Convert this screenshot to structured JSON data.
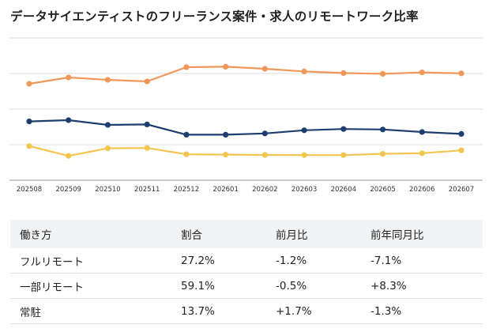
{
  "title": "データサイエンティストのフリーランス案件・求人のリモートワーク比率",
  "chart_data": {
    "type": "line",
    "x": [
      "202508",
      "202509",
      "202510",
      "202511",
      "202512",
      "202601",
      "202602",
      "202603",
      "202604",
      "202605",
      "202606",
      "202607"
    ],
    "series": [
      {
        "color": "#f0975a",
        "values": [
          61.0,
          65.0,
          63.5,
          62.5,
          71.5,
          71.8,
          70.5,
          68.8,
          67.8,
          67.3,
          68.2,
          67.6
        ]
      },
      {
        "color": "#1d3e6e",
        "values": [
          37.2,
          38.0,
          35.0,
          35.3,
          28.8,
          28.8,
          29.6,
          31.6,
          32.4,
          32.1,
          30.5,
          29.3
        ]
      },
      {
        "color": "#f2c54f",
        "values": [
          21.6,
          15.4,
          20.2,
          20.4,
          16.4,
          16.2,
          16.0,
          15.9,
          15.9,
          16.7,
          17.1,
          18.9
        ]
      }
    ],
    "ylim": [
      0,
      90
    ],
    "grid": true
  },
  "table": {
    "headers": [
      "働き方",
      "割合",
      "前月比",
      "前年同月比"
    ],
    "rows": [
      [
        "フルリモート",
        "27.2%",
        "-1.2%",
        "-7.1%"
      ],
      [
        "一部リモート",
        "59.1%",
        "-0.5%",
        "+8.3%"
      ],
      [
        "常駐",
        "13.7%",
        "+1.7%",
        "-1.3%"
      ]
    ]
  }
}
